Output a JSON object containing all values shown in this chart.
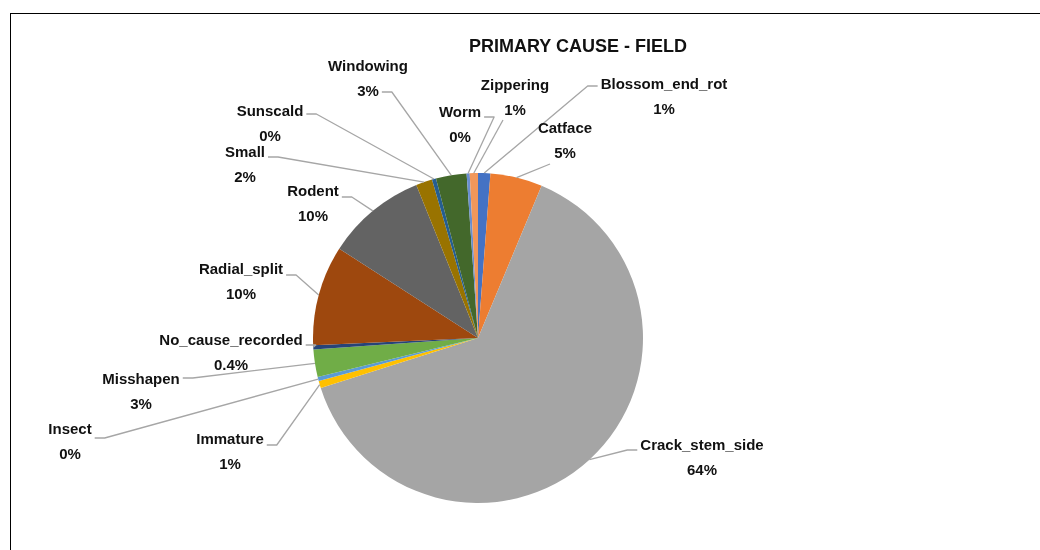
{
  "chart_data": {
    "type": "pie",
    "title": "PRIMARY CAUSE - FIELD",
    "categories": [
      "Blossom_end_rot",
      "Catface",
      "Crack_stem_side",
      "Immature",
      "Insect",
      "Misshapen",
      "No_cause_recorded",
      "Radial_split",
      "Rodent",
      "Small",
      "Sunscald",
      "Windowing",
      "Worm",
      "Zippering"
    ],
    "values": [
      1.2,
      5.1,
      63.8,
      0.7,
      0.4,
      2.7,
      0.4,
      9.8,
      9.8,
      1.6,
      0.4,
      3.0,
      0.3,
      0.8
    ],
    "colors": [
      "#4472c4",
      "#ed7d31",
      "#a5a5a5",
      "#ffc000",
      "#5b9bd5",
      "#70ad47",
      "#264478",
      "#9e480e",
      "#636363",
      "#997300",
      "#255e91",
      "#43682b",
      "#698ed0",
      "#f1975a"
    ],
    "value_labels": [
      "1%",
      "5%",
      "64%",
      "1%",
      "0%",
      "3%",
      "0.4%",
      "10%",
      "10%",
      "2%",
      "0%",
      "3%",
      "0%",
      "1%"
    ]
  }
}
